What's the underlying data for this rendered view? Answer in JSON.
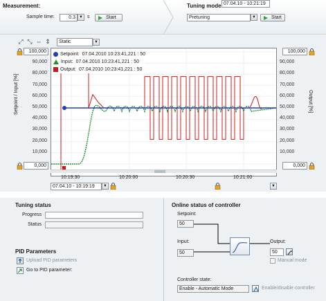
{
  "measurement": {
    "title": "Measurement:",
    "sample_time_label": "Sample time:",
    "sample_time_value": "0.3",
    "sample_time_unit": "s",
    "start_label": "Start"
  },
  "tuning": {
    "title": "Tuning mode:",
    "mode_value": "Pretuning",
    "start_label": "Start"
  },
  "trend": {
    "view_mode": "Static",
    "left_top_value": "100,000",
    "left_bottom_value": "0,000",
    "right_top_value": "100,000",
    "right_bottom_value": "0,000",
    "left_axis_title": "Setpoint / Input  [%]",
    "right_axis_title": "Output  [%]",
    "y_ticks": [
      "90,000",
      "80,000",
      "70,000",
      "60,000",
      "50,000",
      "40,000",
      "30,000",
      "20,000",
      "10,000"
    ],
    "x_ticks": [
      "10:19:30",
      "10:20:00",
      "10:20:30",
      "10:21:00"
    ],
    "time_start": "07.04.10 - 10:19:19",
    "time_end": "07.04.10 - 10:21:19",
    "legend": [
      {
        "name": "Setpoint:",
        "value": "07.04.2010 10:23:41,221 : 50",
        "color": "#1f3fbf",
        "marker": "circle"
      },
      {
        "name": "Input:",
        "value": "07.04.2010 10:23:41,221 : 50",
        "color": "#1f8f2a",
        "marker": "triangle"
      },
      {
        "name": "Output:",
        "value": "07.04.2010 10:23:41,221 : 50",
        "color": "#d01818",
        "marker": "square"
      }
    ]
  },
  "tuning_status": {
    "title": "Tuning status",
    "progress_label": "Progress",
    "status_label": "Status"
  },
  "pid": {
    "title": "PID Parameters",
    "upload_label": "Upload PID parameters",
    "goto_label": "Go to PID parameter:"
  },
  "online": {
    "title": "Online status of controller",
    "setpoint_label": "Setpoint:",
    "setpoint_value": "50",
    "input_label": "Input:",
    "input_value": "50",
    "output_label": "Output:",
    "output_value": "50",
    "manual_mode_label": "Manual mode",
    "controller_state_label": "Controller state:",
    "controller_state_value": "Enable - Automatic Mode",
    "enable_disable_label": "Enable/disable controller"
  },
  "colors": {
    "setpoint": "#1f3fbf",
    "input": "#1f8f2a",
    "output": "#d01818"
  }
}
